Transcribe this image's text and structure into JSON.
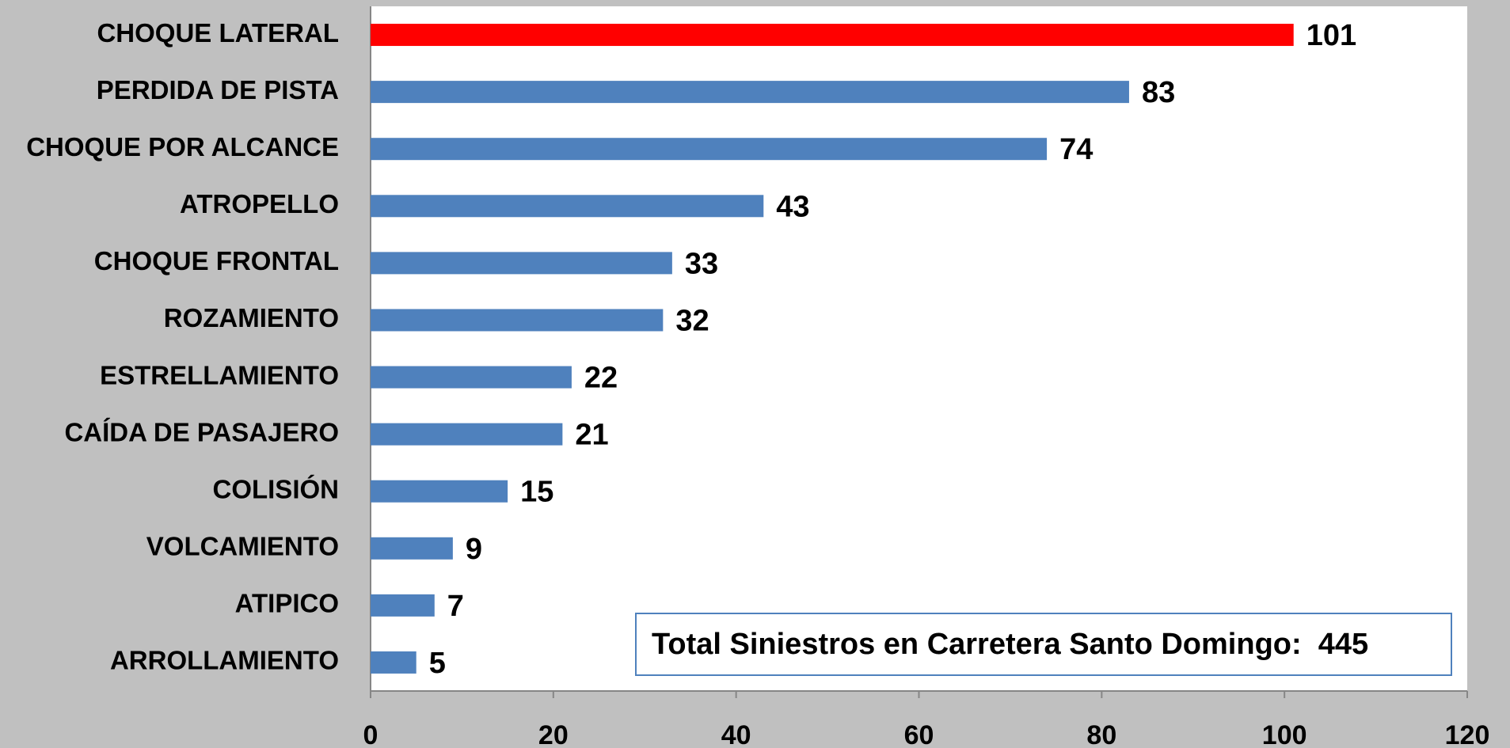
{
  "chart_data": {
    "type": "barh",
    "categories": [
      "CHOQUE LATERAL",
      "PERDIDA DE PISTA",
      "CHOQUE POR ALCANCE",
      "ATROPELLO",
      "CHOQUE FRONTAL",
      "ROZAMIENTO",
      "ESTRELLAMIENTO",
      "CAÍDA DE PASAJERO",
      "COLISIÓN",
      "VOLCAMIENTO",
      "ATIPICO",
      "ARROLLAMIENTO"
    ],
    "values": [
      101,
      83,
      74,
      43,
      33,
      32,
      22,
      21,
      15,
      9,
      7,
      5
    ],
    "colors": [
      "#ff0000",
      "#4f81bd",
      "#4f81bd",
      "#4f81bd",
      "#4f81bd",
      "#4f81bd",
      "#4f81bd",
      "#4f81bd",
      "#4f81bd",
      "#4f81bd",
      "#4f81bd",
      "#4f81bd"
    ],
    "xlim": [
      0,
      120
    ],
    "xticks": [
      0,
      20,
      40,
      60,
      80,
      100,
      120
    ],
    "annotation": "Total Siniestros en Carretera Santo Domingo:  445"
  }
}
